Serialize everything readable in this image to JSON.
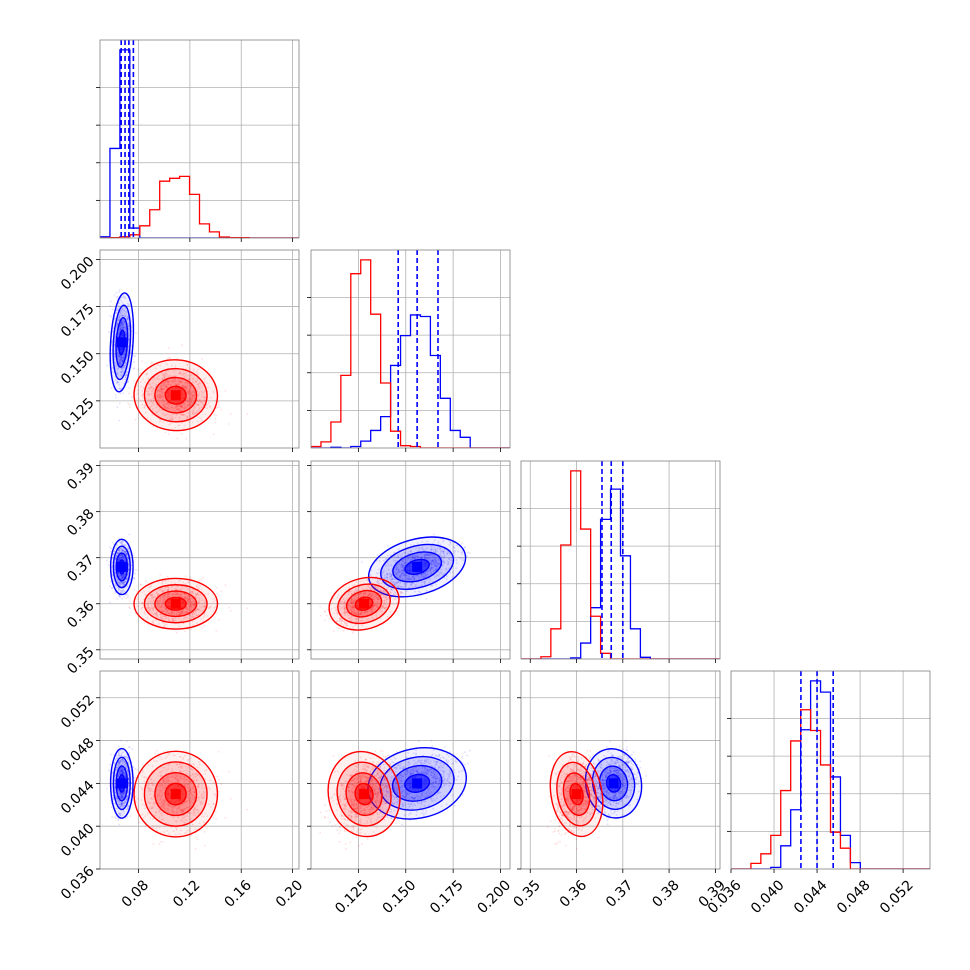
{
  "colors": {
    "series_a": "#0000ff",
    "series_b": "#ff0000",
    "grid": "#b0b0b0"
  },
  "chart_data": {
    "type": "corner",
    "grid": true,
    "series": [
      {
        "name": "",
        "color": "#0000ff",
        "mean": [
          0.067,
          0.156,
          0.368,
          0.044
        ],
        "std": [
          0.0035,
          0.0105,
          0.0024,
          0.0013
        ]
      },
      {
        "name": "",
        "color": "#ff0000",
        "mean": [
          0.109,
          0.128,
          0.36,
          0.043
        ],
        "std": [
          0.013,
          0.0075,
          0.0022,
          0.0016
        ]
      }
    ],
    "params": [
      {
        "lim": [
          0.05,
          0.205
        ],
        "ticks": [
          0.08,
          0.12,
          0.16,
          0.2
        ],
        "tick_labels": [
          "0.08",
          "0.12",
          "0.16",
          "0.20"
        ],
        "quantiles": [
          0.0665,
          0.0695,
          0.0725,
          0.076
        ]
      },
      {
        "lim": [
          0.1,
          0.205
        ],
        "ticks": [
          0.125,
          0.15,
          0.175,
          0.2
        ],
        "tick_labels": [
          "0.125",
          "0.150",
          "0.175",
          "0.200"
        ],
        "quantiles": [
          0.146,
          0.156,
          0.167
        ]
      },
      {
        "lim": [
          0.348,
          0.391
        ],
        "ticks": [
          0.35,
          0.36,
          0.37,
          0.38,
          0.39
        ],
        "tick_labels": [
          "0.35",
          "0.36",
          "0.37",
          "0.38",
          "0.39"
        ],
        "quantiles": [
          0.3655,
          0.3675,
          0.37
        ]
      },
      {
        "lim": [
          0.036,
          0.0545
        ],
        "ticks": [
          0.036,
          0.04,
          0.044,
          0.048,
          0.052
        ],
        "tick_labels": [
          "0.036",
          "0.040",
          "0.044",
          "0.048",
          "0.052"
        ],
        "quantiles": [
          0.0425,
          0.044,
          0.0455
        ]
      }
    ]
  }
}
